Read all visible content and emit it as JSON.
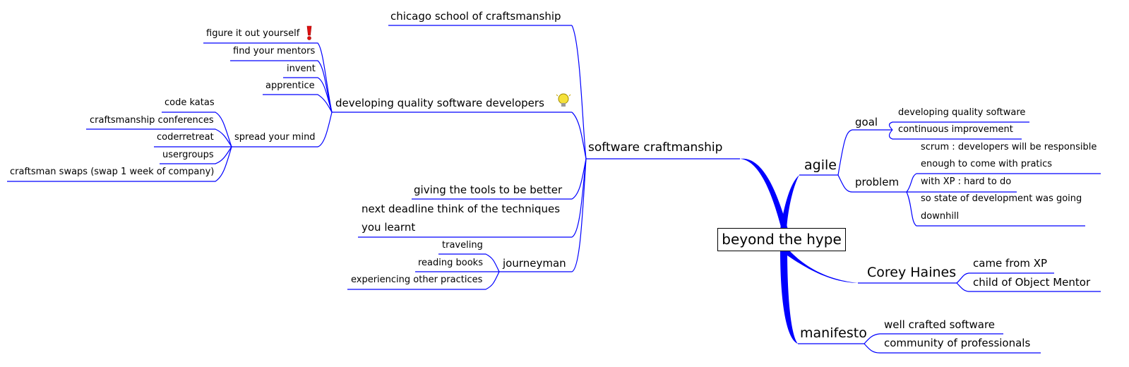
{
  "colors": {
    "branch": "#0000ff",
    "text": "#000000",
    "root_border": "#000000"
  },
  "root": {
    "label": "beyond the hype"
  },
  "software_craftmanship": {
    "label": "software craftmanship",
    "chicago": "chicago school of craftsmanship",
    "developing": {
      "label": "developing quality software developers",
      "icon": "lightbulb-icon",
      "children": {
        "figure": {
          "label": "figure it out yourself",
          "icon": "exclamation-icon"
        },
        "mentors": "find your mentors",
        "invent": "invent",
        "apprentice": "apprentice",
        "spread": {
          "label": "spread your mind",
          "children": [
            "code katas",
            "craftsmanship conferences",
            "coderretreat",
            "usergroups",
            "craftsman swaps (swap 1 week of company)"
          ]
        }
      }
    },
    "giving": "giving the tools to be better",
    "deadline": [
      "next deadline think of the techniques",
      "you learnt"
    ],
    "journeyman": {
      "label": "journeyman",
      "children": [
        "traveling",
        "reading books",
        "experiencing other practices"
      ]
    }
  },
  "agile": {
    "label": "agile",
    "goal": {
      "label": "goal",
      "children": [
        "developing quality software",
        "continuous improvement"
      ]
    },
    "problem": {
      "label": "problem",
      "children": [
        [
          "scrum : developers will be responsible",
          "enough to come with pratics"
        ],
        [
          "with XP : hard to do"
        ],
        [
          "so state of development was going",
          "downhill"
        ]
      ]
    }
  },
  "corey": {
    "label": "Corey Haines",
    "children": [
      "came from XP",
      "child of Object Mentor"
    ]
  },
  "manifesto": {
    "label": "manifesto",
    "children": [
      "well crafted software",
      "community of professionals"
    ]
  }
}
